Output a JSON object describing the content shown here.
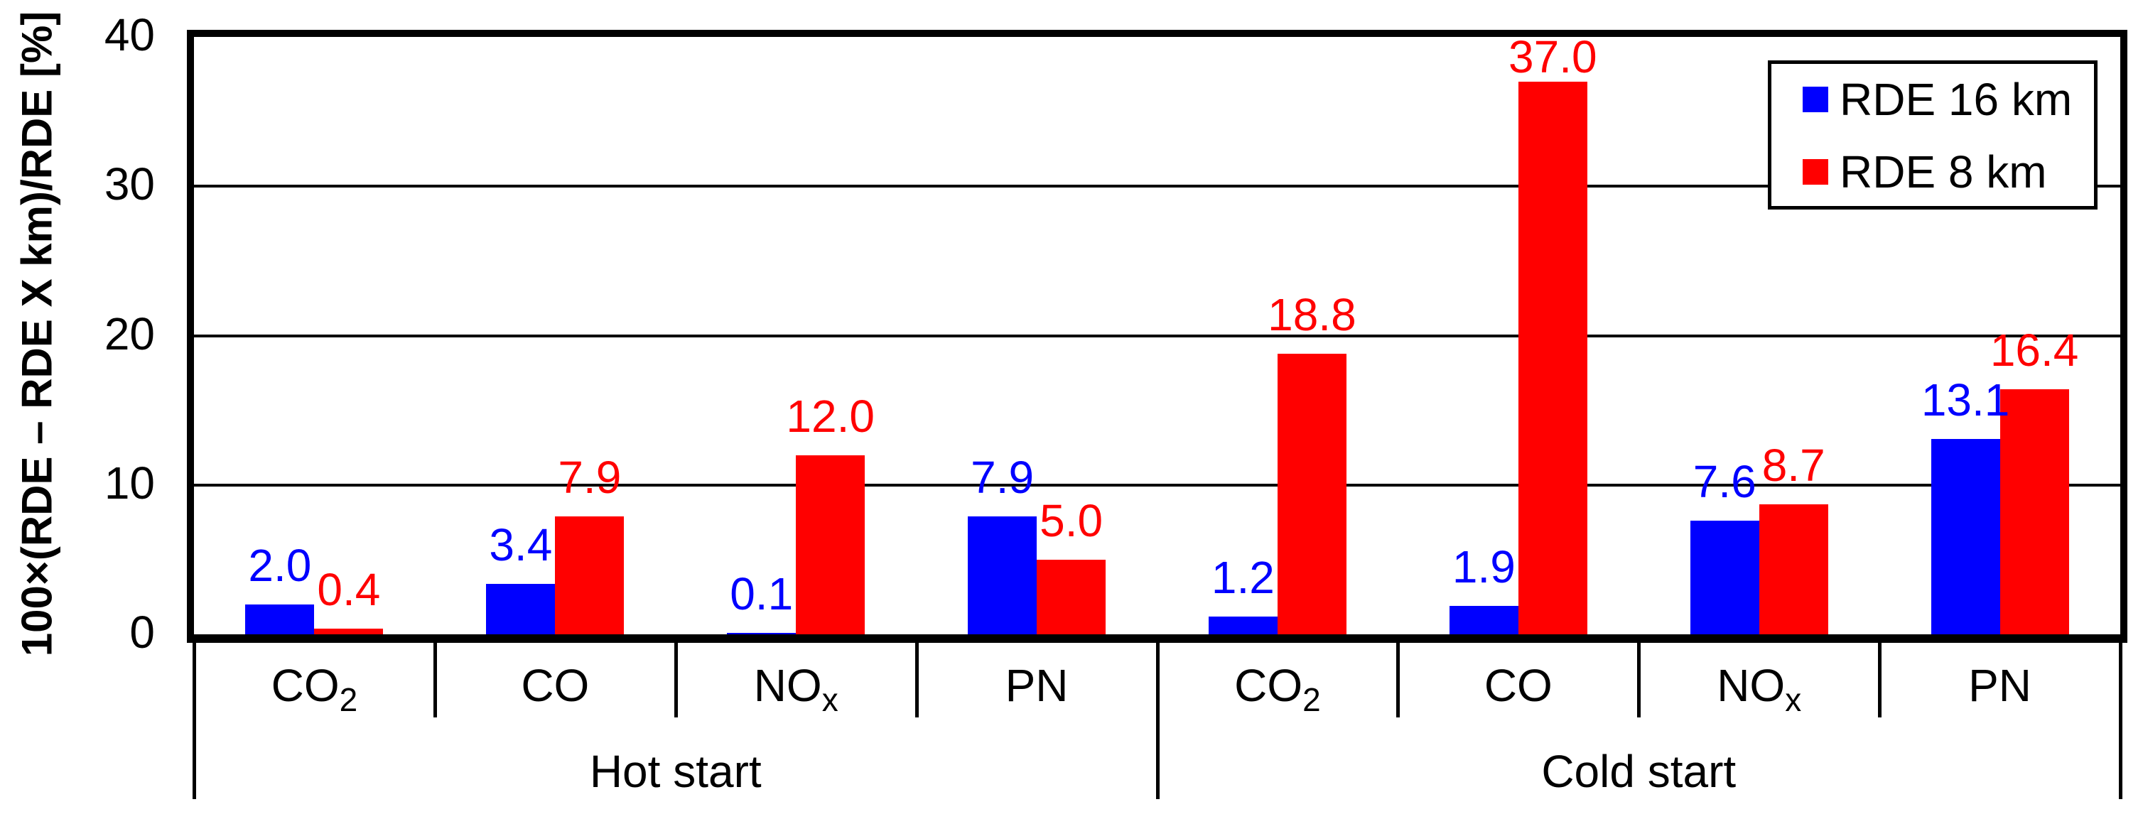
{
  "chart_data": {
    "type": "bar",
    "title": "",
    "ylabel": "100×(RDE – RDE X km)/RDE [%]",
    "xlabel": "",
    "ylim": [
      0,
      40
    ],
    "yticks": [
      0,
      10,
      20,
      30,
      40
    ],
    "grid": "horizontal lines every 10 units",
    "legend_position": "top-right inside plot",
    "value_label_decimals": 1,
    "sections": [
      {
        "label": "Hot start"
      },
      {
        "label": "Cold start"
      }
    ],
    "categories": [
      {
        "base": "CO",
        "sub": "2",
        "section": "Hot start"
      },
      {
        "base": "CO",
        "sub": "",
        "section": "Hot start"
      },
      {
        "base": "NO",
        "sub": "x",
        "section": "Hot start"
      },
      {
        "base": "PN",
        "sub": "",
        "section": "Hot start"
      },
      {
        "base": "CO",
        "sub": "2",
        "section": "Cold start"
      },
      {
        "base": "CO",
        "sub": "",
        "section": "Cold start"
      },
      {
        "base": "NO",
        "sub": "x",
        "section": "Cold start"
      },
      {
        "base": "PN",
        "sub": "",
        "section": "Cold start"
      }
    ],
    "series": [
      {
        "name": "RDE 16 km",
        "color": "#0000ff",
        "values": [
          2.0,
          3.4,
          0.1,
          7.9,
          1.2,
          1.9,
          7.6,
          13.1
        ]
      },
      {
        "name": "RDE 8 km",
        "color": "#ff0000",
        "values": [
          0.4,
          7.9,
          12.0,
          5.0,
          18.8,
          37.0,
          8.7,
          16.4
        ]
      }
    ]
  },
  "colors": {
    "axis": "#000000",
    "background": "#ffffff",
    "series_blue": "#0000ff",
    "series_red": "#ff0000"
  }
}
